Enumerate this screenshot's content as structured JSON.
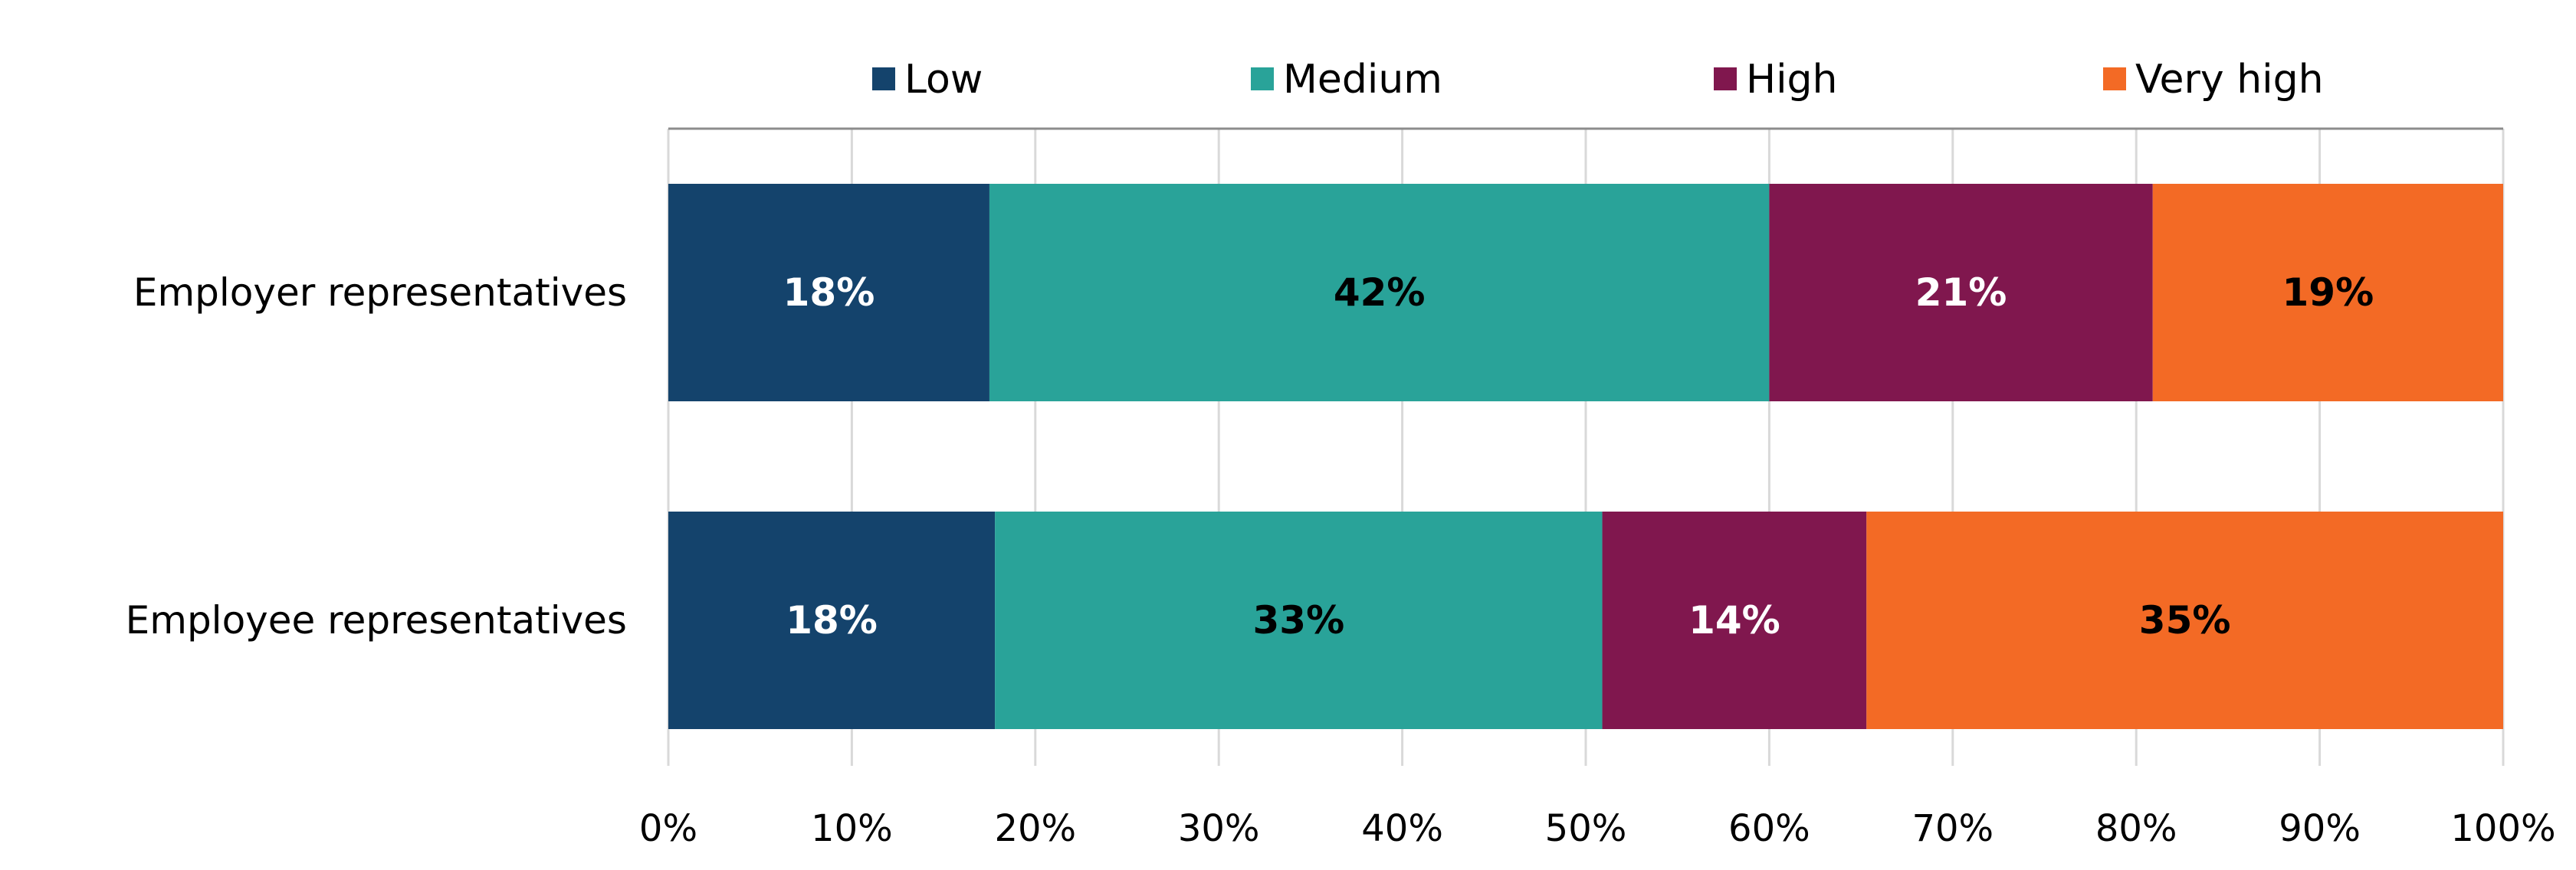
{
  "chart_data": {
    "type": "bar",
    "orientation": "horizontal",
    "stacked": true,
    "title": "",
    "xlabel": "",
    "ylabel": "",
    "categories": [
      "Employer representatives",
      "Employee representatives"
    ],
    "series": [
      {
        "name": "Low",
        "values": [
          17.5,
          17.8
        ],
        "labels": [
          "18%",
          "18%"
        ],
        "color": "#14436c",
        "label_color": "#ffffff"
      },
      {
        "name": "Medium",
        "values": [
          42.5,
          33.1
        ],
        "labels": [
          "42%",
          "33%"
        ],
        "color": "#29a399",
        "label_color": "#000000"
      },
      {
        "name": "High",
        "values": [
          20.9,
          14.4
        ],
        "labels": [
          "21%",
          "14%"
        ],
        "color": "#80174e",
        "label_color": "#ffffff"
      },
      {
        "name": "Very high",
        "values": [
          19.1,
          34.7
        ],
        "labels": [
          "19%",
          "35%"
        ],
        "color": "#f36a25",
        "label_color": "#000000"
      }
    ],
    "xlim": [
      0,
      100
    ],
    "x_ticks": [
      0,
      10,
      20,
      30,
      40,
      50,
      60,
      70,
      80,
      90,
      100
    ],
    "x_tick_labels": [
      "0%",
      "10%",
      "20%",
      "30%",
      "40%",
      "50%",
      "60%",
      "70%",
      "80%",
      "90%",
      "100%"
    ],
    "grid": true,
    "legend_position": "top"
  }
}
